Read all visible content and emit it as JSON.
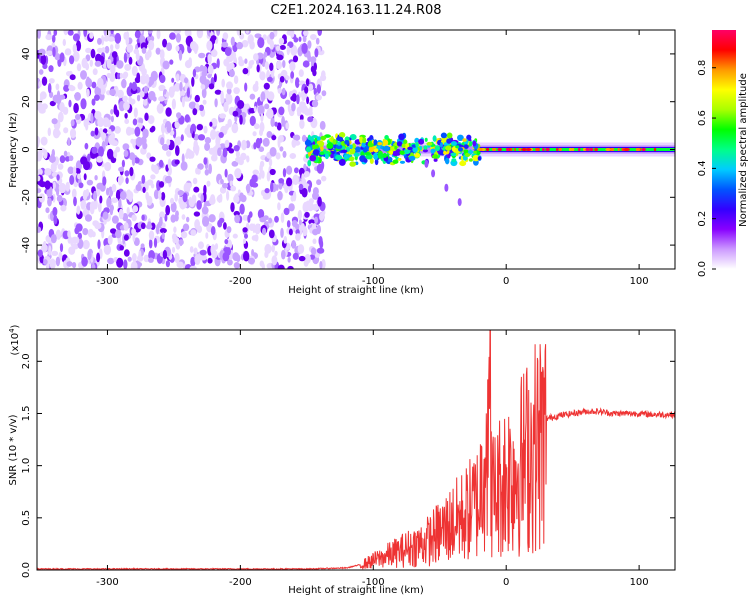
{
  "title": "C2E1.2024.163.11.24.R08",
  "chart_data": [
    {
      "type": "heatmap",
      "xlabel": "Height of straight line (km)",
      "ylabel": "Frequency (Hz)",
      "xlim": [
        -353,
        127
      ],
      "ylim": [
        -50,
        50
      ],
      "xticks": [
        -300,
        -200,
        -100,
        0,
        100
      ],
      "xtick_labels": [
        "-300",
        "-200",
        "-100",
        "0",
        "100"
      ],
      "yticks": [
        -40,
        -20,
        0,
        20,
        40
      ],
      "ytick_labels": [
        "-40",
        "-20",
        "0",
        "20",
        "40"
      ],
      "colorbar": {
        "label": "Normalized spectral amplitude",
        "range": [
          0,
          0.95
        ],
        "ticks": [
          0.0,
          0.2,
          0.4,
          0.6,
          0.8
        ],
        "tick_labels": [
          "0.0",
          "0.2",
          "0.4",
          "0.6",
          "0.8"
        ],
        "colors": [
          "#ffffff",
          "#cc99ff",
          "#8800ff",
          "#3300ff",
          "#0055ff",
          "#00ccff",
          "#00ff88",
          "#00ff00",
          "#aaff00",
          "#ffff00",
          "#ff9900",
          "#ff0000",
          "#ff0066"
        ]
      },
      "regions": {
        "broadband_noise_x": [
          -353,
          -137
        ],
        "broadband_noise_level": 0.08,
        "signal_frequency_hz": 0,
        "signal_start_x": -150
      },
      "grid": false
    },
    {
      "type": "line",
      "xlabel": "Height of straight line (km)",
      "ylabel": "SNR (10 * v/v)",
      "y_multiplier_label": "(x10",
      "y_multiplier_exp": "4",
      "xlim": [
        -353,
        127
      ],
      "ylim": [
        0,
        2.3
      ],
      "xticks": [
        -300,
        -200,
        -100,
        0,
        100
      ],
      "xtick_labels": [
        "-300",
        "-200",
        "-100",
        "0",
        "100"
      ],
      "yticks": [
        0.0,
        0.5,
        1.0,
        1.5,
        2.0
      ],
      "ytick_labels": [
        "0.0",
        "0.5",
        "1.0",
        "1.5",
        "2.0"
      ],
      "series": [
        {
          "color": "#ee3333",
          "x": [
            -353,
            -300,
            -250,
            -200,
            -150,
            -120,
            -110,
            -100,
            -90,
            -80,
            -70,
            -60,
            -50,
            -40,
            -30,
            -20,
            -15,
            -10,
            -5,
            0,
            10,
            20,
            30,
            40,
            50,
            60,
            70,
            80,
            90,
            100,
            110,
            127
          ],
          "y": [
            0.01,
            0.01,
            0.01,
            0.01,
            0.01,
            0.02,
            0.05,
            0.1,
            0.15,
            0.2,
            0.25,
            0.3,
            0.4,
            0.5,
            0.6,
            0.75,
            1.6,
            0.8,
            0.9,
            1.0,
            1.1,
            1.3,
            1.45,
            1.48,
            1.5,
            1.52,
            1.52,
            1.5,
            1.5,
            1.5,
            1.49,
            1.49
          ]
        }
      ],
      "grid": false
    }
  ]
}
